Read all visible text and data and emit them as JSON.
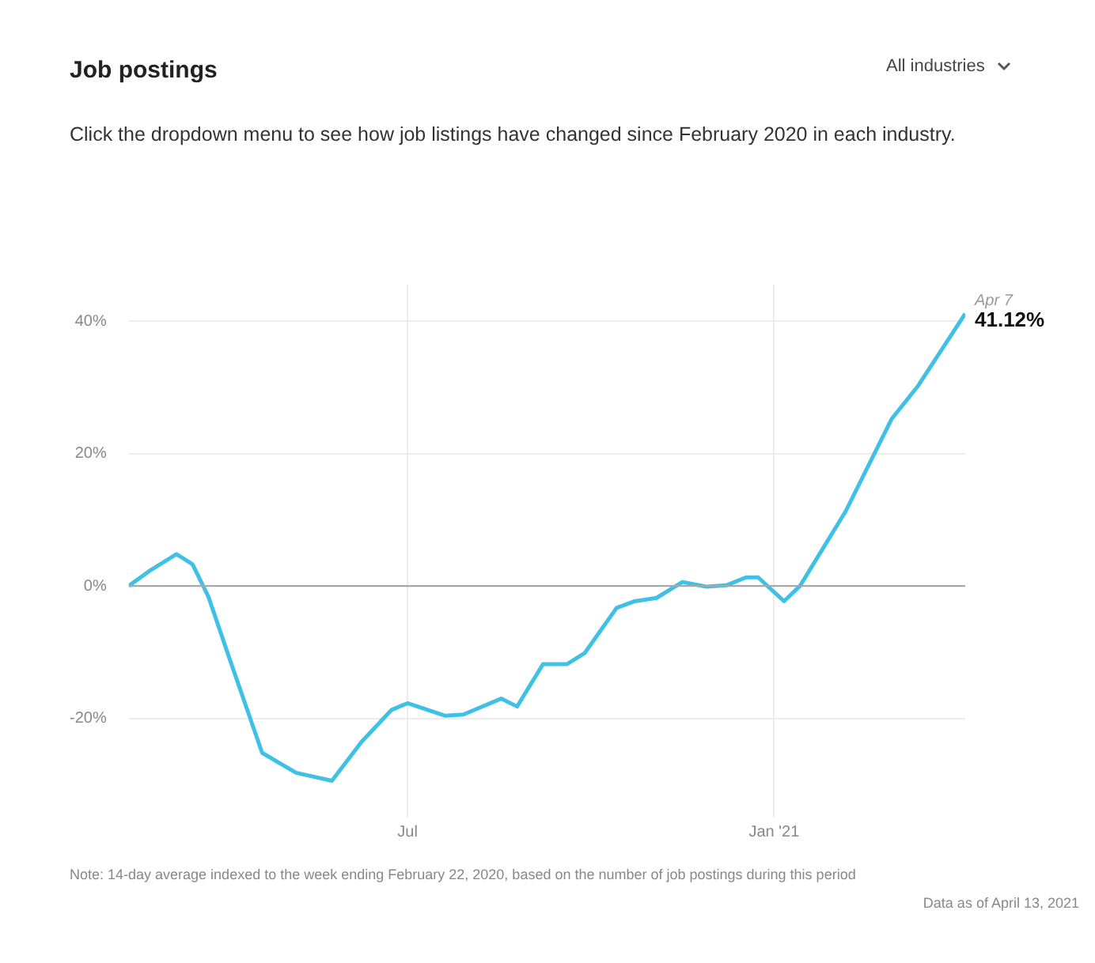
{
  "chart_data": {
    "type": "line",
    "title": "Job postings",
    "subtitle": "Click the dropdown menu to see how job listings have changed since February 2020 in each industry.",
    "x": [
      "2020-02-12",
      "2020-02-23",
      "2020-03-07",
      "2020-03-15",
      "2020-03-23",
      "2020-04-03",
      "2020-04-19",
      "2020-05-06",
      "2020-05-24",
      "2020-06-08",
      "2020-06-23",
      "2020-07-01",
      "2020-07-20",
      "2020-07-29",
      "2020-08-17",
      "2020-08-25",
      "2020-09-07",
      "2020-09-19",
      "2020-09-28",
      "2020-10-14",
      "2020-10-23",
      "2020-11-03",
      "2020-11-16",
      "2020-11-28",
      "2020-12-08",
      "2020-12-18",
      "2020-12-24",
      "2021-01-06",
      "2021-01-14",
      "2021-02-06",
      "2021-03-01",
      "2021-03-14",
      "2021-04-07"
    ],
    "series": [
      {
        "color": "#3fc1e6",
        "values": [
          0,
          2.4,
          4.8,
          3.3,
          -1.6,
          -11.3,
          -25.2,
          -28.2,
          -29.4,
          -23.5,
          -18.7,
          -17.7,
          -19.6,
          -19.4,
          -17,
          -18.2,
          -11.8,
          -11.8,
          -10.1,
          -3.3,
          -2.3,
          -1.8,
          0.6,
          -0.1,
          0.1,
          1.3,
          1.3,
          -2.3,
          0,
          11.3,
          25.2,
          30.1,
          41.12
        ],
        "value_labels": [
          null,
          null,
          null,
          null,
          null,
          null,
          null,
          null,
          null,
          null,
          null,
          null,
          null,
          null,
          null,
          null,
          null,
          null,
          null,
          null,
          null,
          null,
          null,
          null,
          null,
          null,
          null,
          null,
          null,
          null,
          null,
          null,
          "41.12%"
        ]
      }
    ],
    "xlim": [
      "2020-02-12",
      "2021-04-07"
    ],
    "xticks": [
      {
        "value": "2020-07-01",
        "label": "Jul"
      },
      {
        "value": "2021-01-01",
        "label": "Jan '21"
      }
    ],
    "ylim": [
      -34,
      45.5
    ],
    "yticks": [
      {
        "value": -20,
        "label": "-20%"
      },
      {
        "value": 0,
        "label": "0%"
      },
      {
        "value": 20,
        "label": "20%"
      },
      {
        "value": 40,
        "label": "40%"
      }
    ],
    "grid": true,
    "ref_lines": [
      {
        "axis": "y",
        "value": 0,
        "color": "#a8a8a8"
      }
    ],
    "annotations": [
      "All industries",
      "Note: 14-day average indexed to the week ending February 22, 2020, based on the number of job postings during this period",
      "Data as of April 13, 2021",
      {
        "text": "Apr 7",
        "x": "2021-04-07",
        "y": 41.12
      }
    ]
  }
}
